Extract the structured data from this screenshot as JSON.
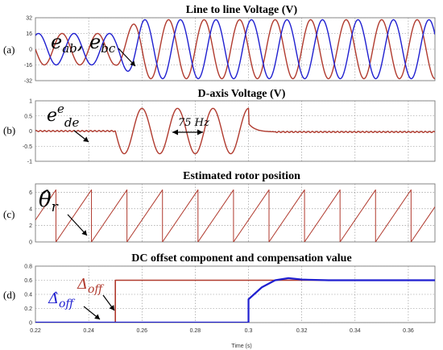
{
  "panel_labels": [
    "(a)",
    "(b)",
    "(c)",
    "(d)"
  ],
  "annotations": {
    "a_label": "e_ab, e_bc",
    "b_label": "e^e_de",
    "b_freq": "75 Hz",
    "c_label": "θ̂_r",
    "d_est": "Δ̂_off",
    "d_true": "Δ_off"
  },
  "colors": {
    "red": "#b03a2e",
    "blue": "#1f1fd0",
    "grid": "#8a8a8a"
  },
  "chart_data": [
    {
      "type": "line",
      "title": "Line to line Voltage (V)",
      "xlim": [
        0.22,
        0.37
      ],
      "ylim": [
        -32,
        32
      ],
      "yticks": [
        "32",
        "16",
        "0",
        "-16",
        "-32"
      ],
      "grid": true,
      "series": [
        {
          "name": "e_ab",
          "color": "red",
          "x": [
            0.22,
            0.25,
            0.26,
            0.37
          ],
          "frequency_hz": [
            75,
            75,
            75,
            75
          ],
          "amplitude": [
            16,
            16,
            30,
            30
          ],
          "phase_deg": 0
        },
        {
          "name": "e_bc",
          "color": "blue",
          "x": [
            0.22,
            0.25,
            0.26,
            0.37
          ],
          "frequency_hz": [
            75,
            75,
            75,
            75
          ],
          "amplitude": [
            16,
            16,
            30,
            30
          ],
          "phase_deg": -120
        }
      ]
    },
    {
      "type": "line",
      "title": "D-axis Voltage (V)",
      "xlim": [
        0.22,
        0.37
      ],
      "ylim": [
        -1,
        1
      ],
      "yticks": [
        "1",
        "0.5",
        "0",
        "-0.5",
        "-1"
      ],
      "grid": true,
      "series": [
        {
          "name": "e^e_de",
          "color": "red",
          "segments": [
            {
              "x": [
                0.22,
                0.25
              ],
              "value": 0.0
            },
            {
              "x": [
                0.25,
                0.3
              ],
              "sine_amplitude": 0.75,
              "frequency_hz": 75
            },
            {
              "x": [
                0.3,
                0.31
              ],
              "decay_from": 0.25,
              "settles_to": -0.03
            },
            {
              "x": [
                0.31,
                0.37
              ],
              "value": -0.03
            }
          ]
        }
      ]
    },
    {
      "type": "line",
      "title": "Estimated rotor position",
      "xlim": [
        0.22,
        0.37
      ],
      "ylim": [
        0,
        7
      ],
      "yticks": [
        "6",
        "4",
        "2",
        "0"
      ],
      "grid": true,
      "series": [
        {
          "name": "θ̂_r",
          "color": "red",
          "shape": "sawtooth",
          "frequency_hz": 75,
          "peak": 6.28,
          "first_reset": 0.2277
        }
      ]
    },
    {
      "type": "line",
      "title": "DC offset component and compensation value",
      "xlim": [
        0.22,
        0.37
      ],
      "ylim": [
        0,
        0.8
      ],
      "yticks": [
        "0.8",
        "0.6",
        "0.4",
        "0.2",
        "0"
      ],
      "xticks": [
        "0.22",
        "0.24",
        "0.26",
        "0.28",
        "0.3",
        "0.32",
        "0.34",
        "0.36"
      ],
      "xlabel": "Time (s)",
      "grid": true,
      "series": [
        {
          "name": "Δ_off",
          "color": "red",
          "x": [
            0.22,
            0.25,
            0.25,
            0.37
          ],
          "y": [
            0.0,
            0.0,
            0.6,
            0.6
          ]
        },
        {
          "name": "Δ̂_off",
          "color": "blue",
          "x": [
            0.22,
            0.3,
            0.3,
            0.305,
            0.31,
            0.315,
            0.32,
            0.33,
            0.37
          ],
          "y": [
            0.0,
            0.0,
            0.33,
            0.5,
            0.6,
            0.63,
            0.61,
            0.6,
            0.6
          ]
        }
      ]
    }
  ]
}
